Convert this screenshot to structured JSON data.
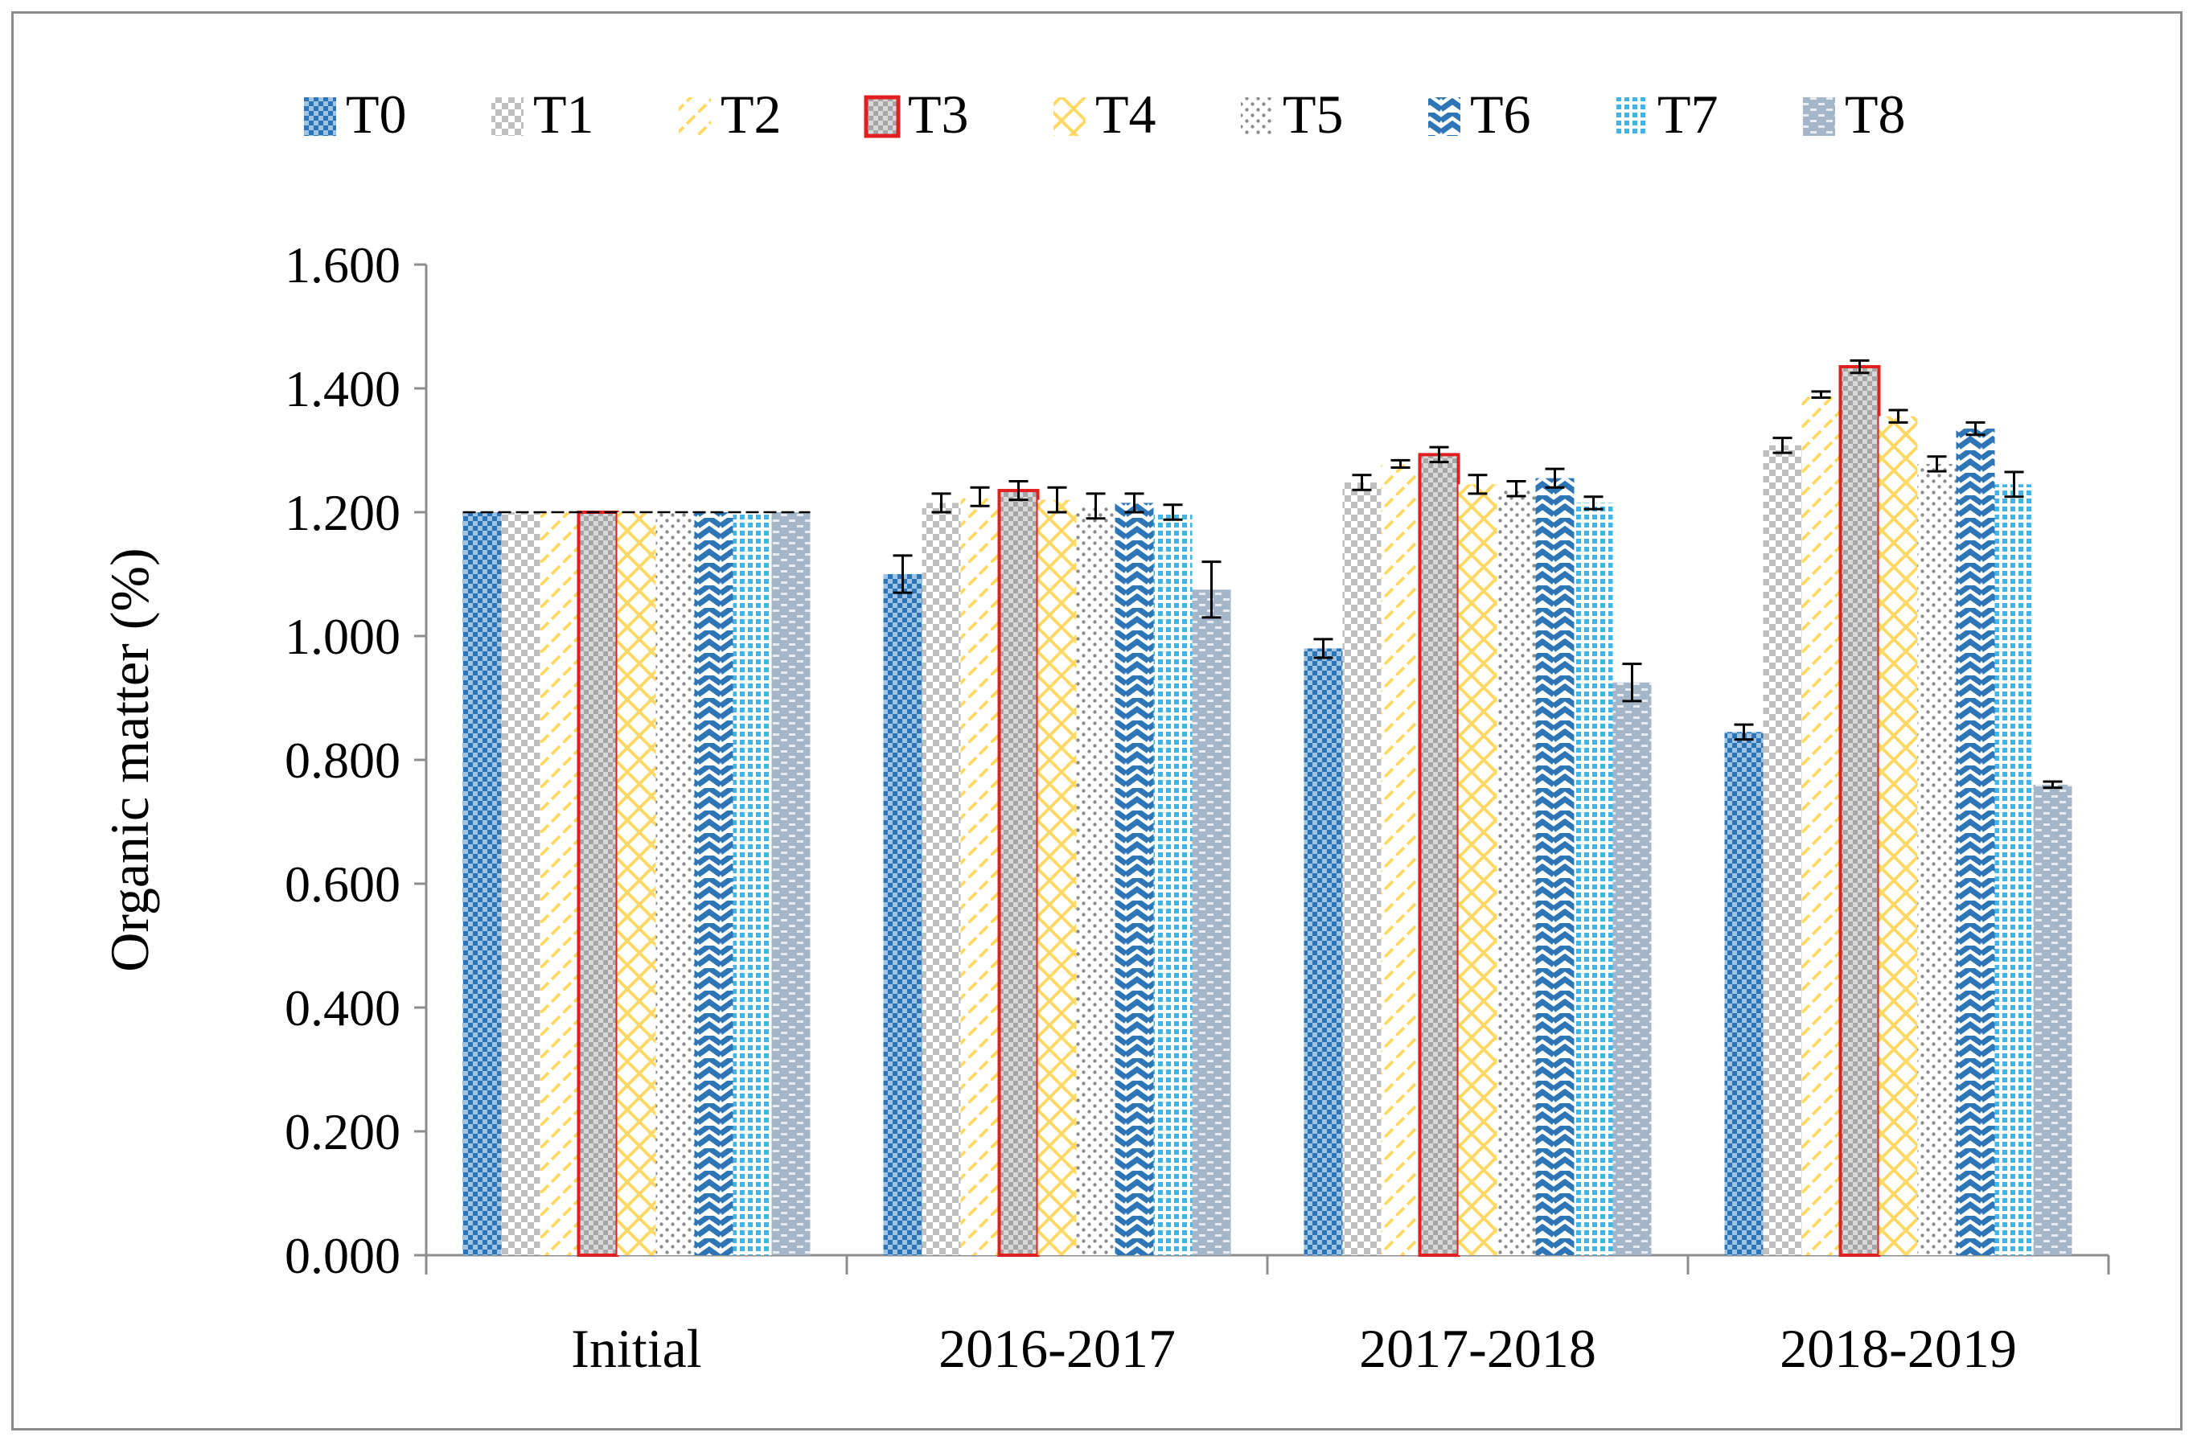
{
  "chart_data": {
    "type": "bar",
    "title": "",
    "xlabel": "",
    "ylabel": "Organic matter (%)",
    "ylim": [
      0,
      1.6
    ],
    "yticks": [
      "0.000",
      "0.200",
      "0.400",
      "0.600",
      "0.800",
      "1.000",
      "1.200",
      "1.400",
      "1.600"
    ],
    "categories": [
      "Initial",
      "2016-2017",
      "2017-2018",
      "2018-2019"
    ],
    "legend_position": "top",
    "series": [
      {
        "name": "T0",
        "color": "#2e75b6",
        "pattern": "checker",
        "values": [
          1.2,
          1.1,
          0.98,
          0.845
        ],
        "errors": [
          0,
          0.03,
          0.015,
          0.012
        ]
      },
      {
        "name": "T1",
        "color": "#bfbfbf",
        "pattern": "checker",
        "values": [
          1.2,
          1.215,
          1.248,
          1.308
        ],
        "errors": [
          0,
          0.015,
          0.012,
          0.012
        ]
      },
      {
        "name": "T2",
        "color": "#ffd966",
        "pattern": "diagonal",
        "values": [
          1.2,
          1.225,
          1.278,
          1.39
        ],
        "errors": [
          0,
          0.015,
          0.006,
          0.005
        ]
      },
      {
        "name": "T3",
        "color": "#bfbfbf",
        "pattern": "checker",
        "outline": "#e02020",
        "values": [
          1.2,
          1.235,
          1.293,
          1.435
        ],
        "errors": [
          0,
          0.015,
          0.012,
          0.01
        ]
      },
      {
        "name": "T4",
        "color": "#ffd966",
        "pattern": "zigzag",
        "values": [
          1.2,
          1.22,
          1.245,
          1.355
        ],
        "errors": [
          0,
          0.02,
          0.015,
          0.01
        ]
      },
      {
        "name": "T5",
        "color": "#a6a6a6",
        "pattern": "dots",
        "values": [
          1.2,
          1.21,
          1.238,
          1.278
        ],
        "errors": [
          0,
          0.02,
          0.012,
          0.012
        ]
      },
      {
        "name": "T6",
        "color": "#2e75b6",
        "pattern": "zigzag",
        "values": [
          1.2,
          1.215,
          1.255,
          1.335
        ],
        "errors": [
          0,
          0.015,
          0.015,
          0.01
        ]
      },
      {
        "name": "T7",
        "color": "#41b6e6",
        "pattern": "dots",
        "values": [
          1.2,
          1.2,
          1.215,
          1.245
        ],
        "errors": [
          0,
          0.012,
          0.01,
          0.02
        ]
      },
      {
        "name": "T8",
        "color": "#a5b6c9",
        "pattern": "bricks",
        "values": [
          1.2,
          1.075,
          0.925,
          0.76
        ],
        "errors": [
          0,
          0.045,
          0.03,
          0.005
        ]
      }
    ]
  }
}
